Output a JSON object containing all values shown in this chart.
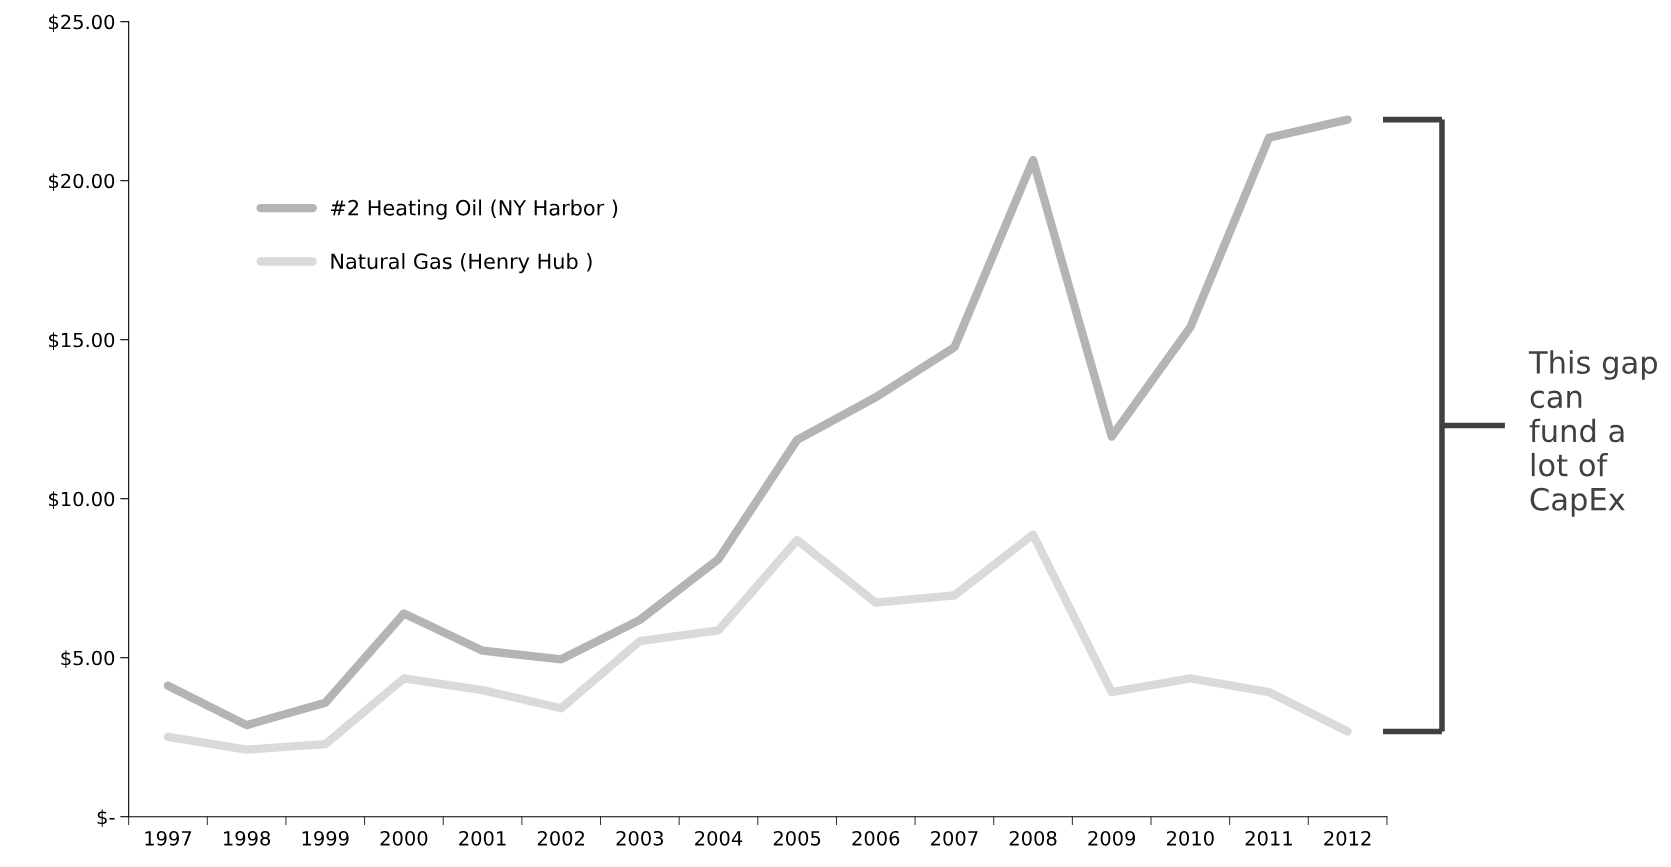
{
  "chart_data": {
    "type": "line",
    "categories": [
      "1997",
      "1998",
      "1999",
      "2000",
      "2001",
      "2002",
      "2003",
      "2004",
      "2005",
      "2006",
      "2007",
      "2008",
      "2009",
      "2010",
      "2011",
      "2012"
    ],
    "series": [
      {
        "name": "#2 Heating Oil (NY Harbor )",
        "color": "#b4b4b4",
        "values": [
          4.12,
          2.88,
          3.58,
          6.39,
          5.22,
          4.95,
          6.19,
          8.1,
          11.85,
          13.19,
          14.76,
          20.65,
          11.95,
          15.39,
          21.35,
          21.92
        ]
      },
      {
        "name": "Natural Gas (Henry Hub )",
        "color": "#dadada",
        "values": [
          2.51,
          2.11,
          2.28,
          4.35,
          3.98,
          3.41,
          5.52,
          5.86,
          8.7,
          6.73,
          6.96,
          8.87,
          3.92,
          4.35,
          3.92,
          2.68
        ]
      }
    ],
    "ylim": [
      0,
      25
    ],
    "yticks": [
      {
        "value": 0,
        "label": "$-"
      },
      {
        "value": 5,
        "label": "$5.00"
      },
      {
        "value": 10,
        "label": "$10.00"
      },
      {
        "value": 15,
        "label": "$15.00"
      },
      {
        "value": 20,
        "label": "$20.00"
      },
      {
        "value": 25,
        "label": "$25.00"
      }
    ],
    "grid": false,
    "legend": "left",
    "marker": "none",
    "line_style": "solid",
    "annotations": [
      "This gap can fund a lot of CapEx"
    ]
  }
}
